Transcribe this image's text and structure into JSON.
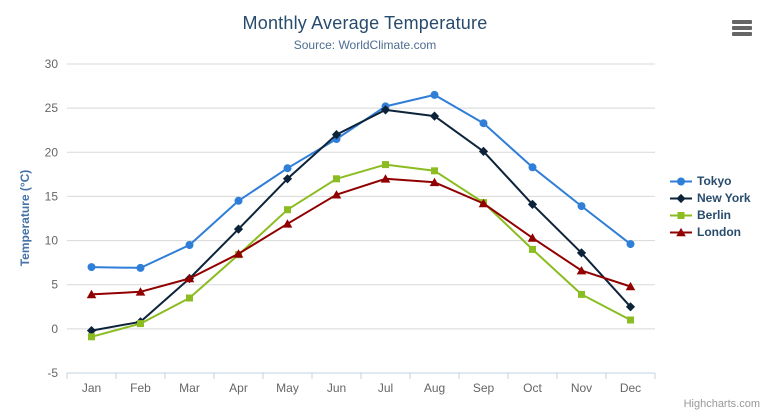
{
  "credit": "Highcharts.com",
  "export_menu_tooltip": "Chart context menu",
  "chart_data": {
    "type": "line",
    "title": "Monthly Average Temperature",
    "subtitle": "Source: WorldClimate.com",
    "xlabel": "",
    "ylabel": "Temperature (°C)",
    "ylim": [
      -5,
      30
    ],
    "ytick_interval": 5,
    "grid": true,
    "legend_position": "right",
    "categories": [
      "Jan",
      "Feb",
      "Mar",
      "Apr",
      "May",
      "Jun",
      "Jul",
      "Aug",
      "Sep",
      "Oct",
      "Nov",
      "Dec"
    ],
    "series": [
      {
        "name": "Tokyo",
        "color": "#2f7ed8",
        "symbol": "circle",
        "values": [
          7.0,
          6.9,
          9.5,
          14.5,
          18.2,
          21.5,
          25.2,
          26.5,
          23.3,
          18.3,
          13.9,
          9.6
        ]
      },
      {
        "name": "New York",
        "color": "#0d233a",
        "symbol": "diamond",
        "values": [
          -0.2,
          0.8,
          5.7,
          11.3,
          17.0,
          22.0,
          24.8,
          24.1,
          20.1,
          14.1,
          8.6,
          2.5
        ]
      },
      {
        "name": "Berlin",
        "color": "#8bbc21",
        "symbol": "square",
        "values": [
          -0.9,
          0.6,
          3.5,
          8.4,
          13.5,
          17.0,
          18.6,
          17.9,
          14.3,
          9.0,
          3.9,
          1.0
        ]
      },
      {
        "name": "London",
        "color": "#910000",
        "symbol": "triangle",
        "values": [
          3.9,
          4.2,
          5.7,
          8.5,
          11.9,
          15.2,
          17.0,
          16.6,
          14.2,
          10.3,
          6.6,
          4.8
        ]
      }
    ],
    "colors": {
      "grid_line": "#d8d8d8",
      "axis_line": "#c0d0e0",
      "axis_labels": "#666666",
      "title": "#274b6d",
      "subtitle": "#4d6d91",
      "yaxis_title": "#4572a7"
    }
  }
}
